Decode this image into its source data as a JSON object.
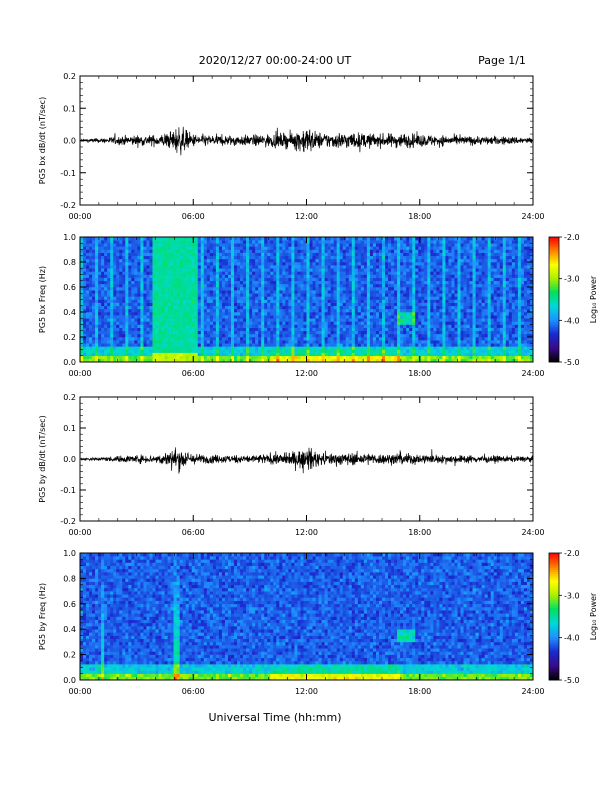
{
  "header": {
    "title": "2020/12/27  00:00-24:00 UT",
    "page": "Page 1/1"
  },
  "colors": {
    "colormap": [
      "#000000",
      "#3a0a8a",
      "#1a2ad0",
      "#1e90ff",
      "#00d8d8",
      "#00e060",
      "#a8f000",
      "#ffff00",
      "#ff8000",
      "#ff0000"
    ]
  },
  "chart_data": [
    {
      "type": "line",
      "ylabel": "PG5 bx dB/dt (nT/sec)",
      "xlim": [
        0,
        24
      ],
      "ylim": [
        -0.2,
        0.2
      ],
      "xticks": [
        "00:00",
        "06:00",
        "12:00",
        "18:00",
        "24:00"
      ],
      "yticks": [
        "-0.2",
        "-0.1",
        "0.0",
        "0.1",
        "0.2"
      ],
      "envelope": {
        "hours": [
          0,
          1,
          2,
          3,
          4,
          4.8,
          5.2,
          5.6,
          6,
          7,
          8,
          9,
          10,
          11,
          11.5,
          12,
          12.5,
          13,
          14,
          15,
          16,
          17,
          18,
          19,
          20,
          21,
          22,
          23,
          24
        ],
        "amplitude": [
          0.008,
          0.01,
          0.02,
          0.025,
          0.025,
          0.04,
          0.07,
          0.05,
          0.03,
          0.025,
          0.025,
          0.025,
          0.03,
          0.035,
          0.045,
          0.07,
          0.04,
          0.035,
          0.04,
          0.035,
          0.03,
          0.035,
          0.03,
          0.025,
          0.022,
          0.02,
          0.02,
          0.018,
          0.015
        ]
      }
    },
    {
      "type": "heatmap",
      "ylabel": "PG5 bx Freq (Hz)",
      "xlim": [
        0,
        24
      ],
      "ylim": [
        0,
        1
      ],
      "xticks": [
        "00:00",
        "06:00",
        "12:00",
        "18:00",
        "24:00"
      ],
      "yticks": [
        "0.0",
        "0.2",
        "0.4",
        "0.6",
        "0.8",
        "1.0"
      ],
      "colorbar": {
        "label": "Log₁₀ Power",
        "range": [
          -5,
          -2
        ],
        "ticks": [
          "-2.0",
          "-3.0",
          "-4.0",
          "-5.0"
        ]
      }
    },
    {
      "type": "line",
      "ylabel": "PG5 by dB/dt (nT/sec)",
      "xlim": [
        0,
        24
      ],
      "ylim": [
        -0.2,
        0.2
      ],
      "xticks": [
        "00:00",
        "06:00",
        "12:00",
        "18:00",
        "24:00"
      ],
      "yticks": [
        "-0.2",
        "-0.1",
        "0.0",
        "0.1",
        "0.2"
      ],
      "envelope": {
        "hours": [
          0,
          1,
          2,
          3,
          4,
          4.8,
          5.2,
          5.6,
          6,
          7,
          8,
          9,
          10,
          11,
          11.5,
          12,
          12.5,
          13,
          14,
          15,
          16,
          17,
          18,
          19,
          20,
          21,
          22,
          23,
          24
        ],
        "amplitude": [
          0.006,
          0.008,
          0.015,
          0.02,
          0.02,
          0.04,
          0.06,
          0.04,
          0.025,
          0.02,
          0.02,
          0.02,
          0.025,
          0.03,
          0.04,
          0.06,
          0.035,
          0.03,
          0.03,
          0.03,
          0.025,
          0.03,
          0.025,
          0.02,
          0.02,
          0.018,
          0.016,
          0.014,
          0.012
        ]
      }
    },
    {
      "type": "heatmap",
      "ylabel": "PG5 by Freq (Hz)",
      "xlim": [
        0,
        24
      ],
      "ylim": [
        0,
        1
      ],
      "xticks": [
        "00:00",
        "06:00",
        "12:00",
        "18:00",
        "24:00"
      ],
      "yticks": [
        "0.0",
        "0.2",
        "0.4",
        "0.6",
        "0.8",
        "1.0"
      ],
      "colorbar": {
        "label": "Log₁₀ Power",
        "range": [
          -5,
          -2
        ],
        "ticks": [
          "-2.0",
          "-3.0",
          "-4.0",
          "-5.0"
        ]
      }
    }
  ],
  "xlabel": "Universal Time (hh:mm)"
}
